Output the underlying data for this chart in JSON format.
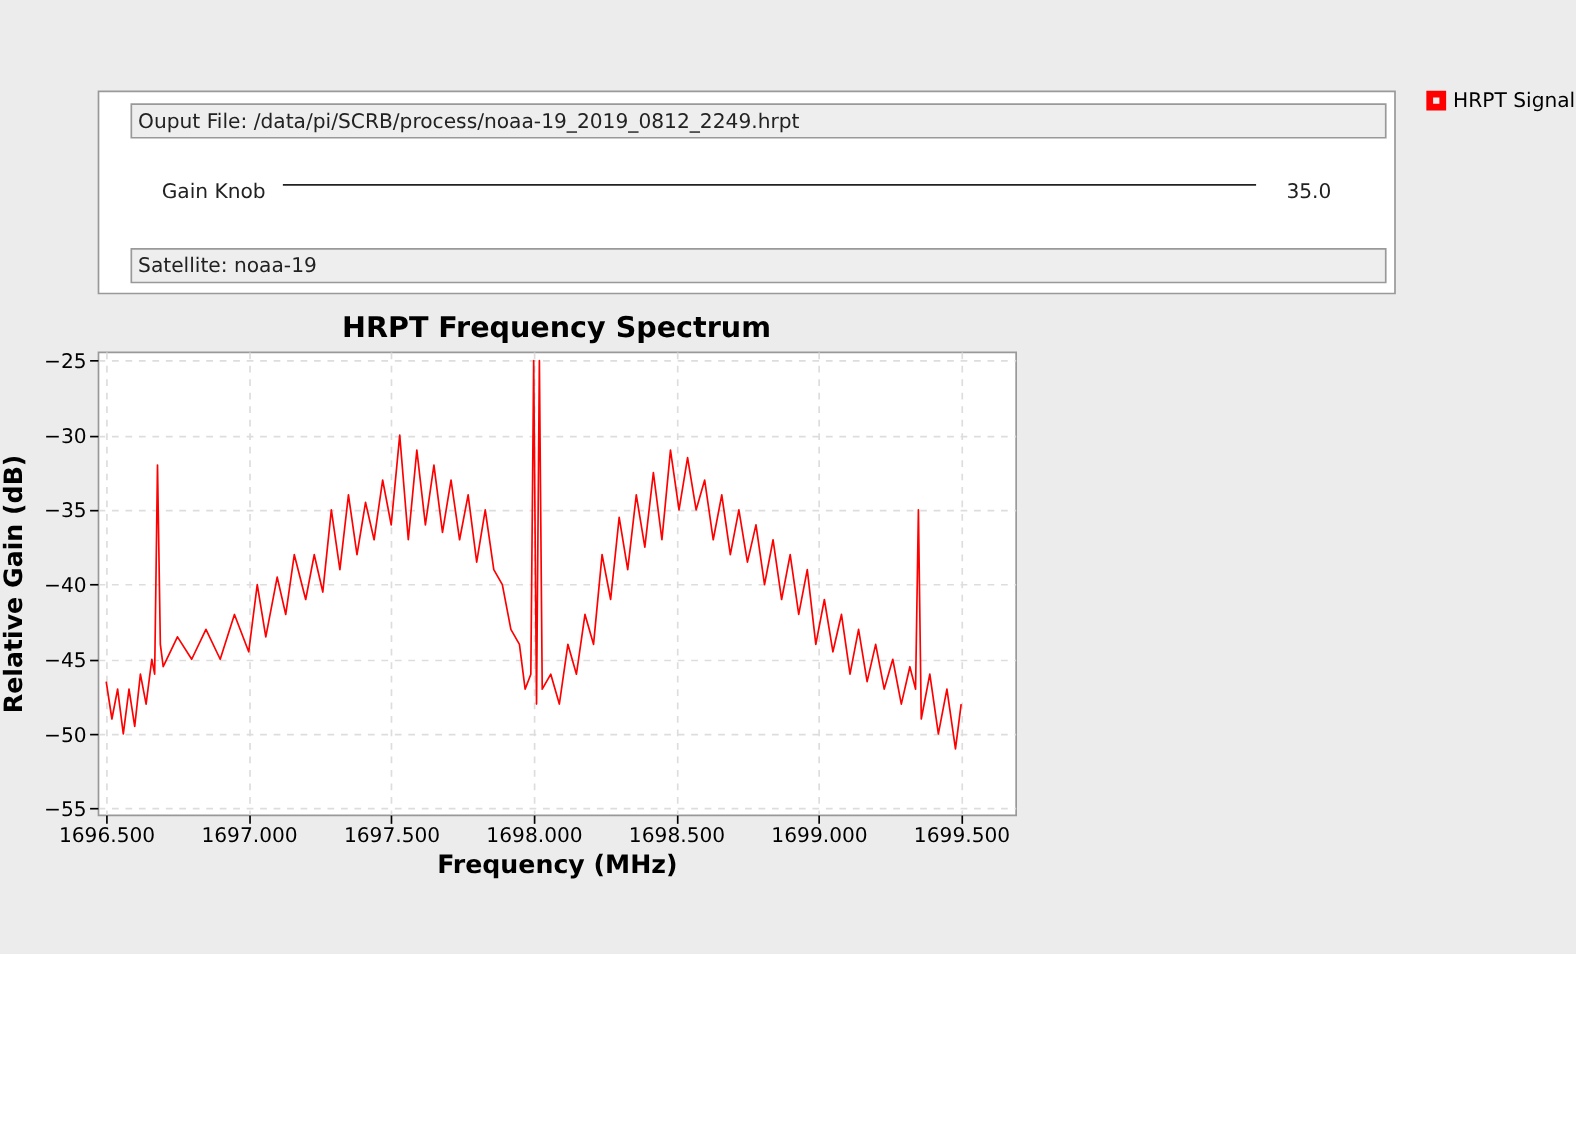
{
  "chart_data": {
    "type": "line",
    "title": "HRPT Frequency Spectrum",
    "xlabel": "Frequency (MHz)",
    "ylabel": "Relative Gain (dB)",
    "annotations": [
      "Ouput File: /data/pi/SCRB/process/noaa-19_2019_0812_2249.hrpt",
      "Gain Knob",
      "35.0",
      "Satellite: noaa-19"
    ],
    "x": [
      1696.5,
      1696.52,
      1696.54,
      1696.56,
      1696.58,
      1696.6,
      1696.62,
      1696.64,
      1696.66,
      1696.67,
      1696.68,
      1696.69,
      1696.7,
      1696.75,
      1696.8,
      1696.85,
      1696.9,
      1696.95,
      1697.0,
      1697.03,
      1697.06,
      1697.1,
      1697.13,
      1697.16,
      1697.2,
      1697.23,
      1697.26,
      1697.29,
      1697.32,
      1697.35,
      1697.38,
      1697.41,
      1697.44,
      1697.47,
      1697.5,
      1697.53,
      1697.56,
      1697.59,
      1697.62,
      1697.65,
      1697.68,
      1697.71,
      1697.74,
      1697.77,
      1697.8,
      1697.83,
      1697.86,
      1697.89,
      1697.92,
      1697.95,
      1697.97,
      1697.99,
      1698.0,
      1698.01,
      1698.02,
      1698.03,
      1698.06,
      1698.09,
      1698.12,
      1698.15,
      1698.18,
      1698.21,
      1698.24,
      1698.27,
      1698.3,
      1698.33,
      1698.36,
      1698.39,
      1698.42,
      1698.45,
      1698.48,
      1698.51,
      1698.54,
      1698.57,
      1698.6,
      1698.63,
      1698.66,
      1698.69,
      1698.72,
      1698.75,
      1698.78,
      1698.81,
      1698.84,
      1698.87,
      1698.9,
      1698.93,
      1698.96,
      1698.99,
      1699.02,
      1699.05,
      1699.08,
      1699.11,
      1699.14,
      1699.17,
      1699.2,
      1699.23,
      1699.26,
      1699.29,
      1699.32,
      1699.34,
      1699.35,
      1699.36,
      1699.39,
      1699.42,
      1699.45,
      1699.48,
      1699.5
    ],
    "series": [
      {
        "name": "HRPT Signal",
        "color": "#ff0000",
        "values": [
          -46.5,
          -49,
          -47,
          -50,
          -47,
          -49.5,
          -46,
          -48,
          -45,
          -46,
          -32,
          -44,
          -45.5,
          -43.5,
          -45,
          -43,
          -45,
          -42,
          -44.5,
          -40,
          -43.5,
          -39.5,
          -42,
          -38,
          -41,
          -38,
          -40.5,
          -35,
          -39,
          -34,
          -38,
          -34.5,
          -37,
          -33,
          -36,
          -30,
          -37,
          -31,
          -36,
          -32,
          -36.5,
          -33,
          -37,
          -34,
          -38.5,
          -35,
          -39,
          -40,
          -43,
          -44,
          -47,
          -46,
          -25,
          -48,
          -25,
          -47,
          -46,
          -48,
          -44,
          -46,
          -42,
          -44,
          -38,
          -41,
          -35.5,
          -39,
          -34,
          -37.5,
          -32.5,
          -37,
          -31,
          -35,
          -31.5,
          -35,
          -33,
          -37,
          -34,
          -38,
          -35,
          -38.5,
          -36,
          -40,
          -37,
          -41,
          -38,
          -42,
          -39,
          -44,
          -41,
          -44.5,
          -42,
          -46,
          -43,
          -46.5,
          -44,
          -47,
          -45,
          -48,
          -45.5,
          -47,
          -35,
          -49,
          -46,
          -50,
          -47,
          -51,
          -48
        ]
      }
    ],
    "xlim": [
      1696.47,
      1699.69
    ],
    "ylim": [
      -55.4,
      -24.4
    ],
    "xticks": [
      {
        "value": 1696.5,
        "label": "1696.500"
      },
      {
        "value": 1697.0,
        "label": "1697.000"
      },
      {
        "value": 1697.5,
        "label": "1697.500"
      },
      {
        "value": 1698.0,
        "label": "1698.000"
      },
      {
        "value": 1698.5,
        "label": "1698.500"
      },
      {
        "value": 1699.0,
        "label": "1699.000"
      },
      {
        "value": 1699.5,
        "label": "1699.500"
      }
    ],
    "yticks": [
      -25,
      -30,
      -35,
      -40,
      -45,
      -50,
      -55
    ],
    "grid": true,
    "legend": "top right",
    "marker": "none",
    "line_style": "solid"
  }
}
